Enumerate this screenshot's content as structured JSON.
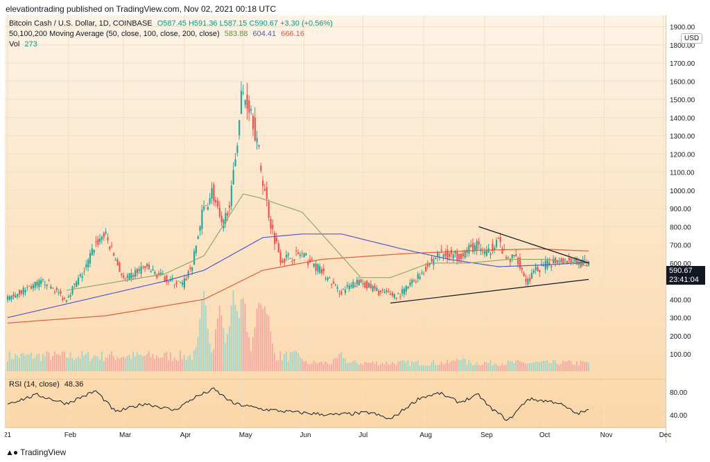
{
  "publisher": "elevationtrading published on TradingView.com, Nov 02, 2021 00:18 UTC",
  "brand": "TradingView",
  "currency_label": "USD",
  "legend": {
    "title": "Bitcoin Cash / U.S. Dollar, 1D, COINBASE",
    "ohlc": "O587.45  H591.36  L587.15  C590.67  +3.30 (+0.56%)",
    "ma_label": "50,100,200 Moving Average (50, close, 100, close, 200, close)",
    "ma50": "583.88",
    "ma100": "604.41",
    "ma200": "666.16",
    "vol_label": "Vol",
    "vol_value": "273",
    "rsi_label": "RSI (14, close)",
    "rsi_value": "48.36"
  },
  "last_price": "590.67",
  "countdown": "23:41:04",
  "colors": {
    "up": "#26a69a",
    "down": "#ef5350",
    "ma50": "#8fa86b",
    "ma100": "#4a5bd1",
    "ma200": "#e05a3a",
    "trend": "#131722",
    "bg_top": "#fdf3e6",
    "bg_bottom": "#fbd7a8"
  },
  "chart_data": {
    "type": "candlestick",
    "x_ticks": [
      "21",
      "Feb",
      "Mar",
      "Apr",
      "May",
      "Jun",
      "Jul",
      "Aug",
      "Sep",
      "Oct",
      "Nov",
      "Dec"
    ],
    "y_ticks": [
      "100.00",
      "200.00",
      "300.00",
      "400.00",
      "500.00",
      "600.00",
      "700.00",
      "800.00",
      "900.00",
      "1000.00",
      "1100.00",
      "1200.00",
      "1300.00",
      "1400.00",
      "1500.00",
      "1600.00",
      "1700.00",
      "1800.00",
      "1900.00"
    ],
    "rsi_ticks": [
      "80.00",
      "40.00"
    ],
    "price_anchors": [
      [
        0,
        400
      ],
      [
        10,
        460
      ],
      [
        20,
        500
      ],
      [
        30,
        400
      ],
      [
        40,
        560
      ],
      [
        45,
        700
      ],
      [
        50,
        760
      ],
      [
        55,
        640
      ],
      [
        60,
        500
      ],
      [
        70,
        580
      ],
      [
        80,
        520
      ],
      [
        90,
        480
      ],
      [
        95,
        600
      ],
      [
        100,
        880
      ],
      [
        105,
        1000
      ],
      [
        110,
        780
      ],
      [
        115,
        1000
      ],
      [
        120,
        1540
      ],
      [
        125,
        1450
      ],
      [
        130,
        1100
      ],
      [
        135,
        800
      ],
      [
        140,
        620
      ],
      [
        150,
        650
      ],
      [
        160,
        560
      ],
      [
        170,
        440
      ],
      [
        180,
        500
      ],
      [
        190,
        440
      ],
      [
        200,
        420
      ],
      [
        210,
        530
      ],
      [
        220,
        650
      ],
      [
        230,
        640
      ],
      [
        240,
        700
      ],
      [
        245,
        640
      ],
      [
        250,
        740
      ],
      [
        255,
        610
      ],
      [
        260,
        640
      ],
      [
        265,
        500
      ],
      [
        270,
        560
      ],
      [
        280,
        620
      ],
      [
        290,
        610
      ],
      [
        296,
        590
      ]
    ],
    "ma50": [
      [
        30,
        450
      ],
      [
        80,
        540
      ],
      [
        100,
        640
      ],
      [
        120,
        980
      ],
      [
        128,
        960
      ],
      [
        150,
        880
      ],
      [
        170,
        640
      ],
      [
        180,
        520
      ],
      [
        195,
        520
      ],
      [
        215,
        600
      ],
      [
        235,
        600
      ],
      [
        255,
        620
      ],
      [
        275,
        620
      ],
      [
        296,
        584
      ]
    ],
    "ma100": [
      [
        0,
        300
      ],
      [
        40,
        400
      ],
      [
        80,
        500
      ],
      [
        100,
        560
      ],
      [
        130,
        740
      ],
      [
        150,
        760
      ],
      [
        170,
        760
      ],
      [
        200,
        680
      ],
      [
        225,
        620
      ],
      [
        250,
        580
      ],
      [
        275,
        590
      ],
      [
        296,
        604
      ]
    ],
    "ma200": [
      [
        0,
        270
      ],
      [
        50,
        310
      ],
      [
        100,
        400
      ],
      [
        130,
        560
      ],
      [
        160,
        620
      ],
      [
        200,
        650
      ],
      [
        240,
        670
      ],
      [
        270,
        678
      ],
      [
        296,
        666
      ]
    ],
    "triangle": {
      "upper": [
        [
          240,
          800
        ],
        [
          296,
          600
        ]
      ],
      "lower": [
        [
          195,
          380
        ],
        [
          296,
          510
        ]
      ]
    },
    "volume_peaks": [
      [
        100,
        390
      ],
      [
        108,
        300
      ],
      [
        115,
        380
      ],
      [
        120,
        350
      ],
      [
        128,
        330
      ],
      [
        132,
        270
      ],
      [
        170,
        90
      ],
      [
        230,
        60
      ]
    ],
    "rsi_anchors": [
      [
        0,
        60
      ],
      [
        15,
        75
      ],
      [
        30,
        60
      ],
      [
        45,
        82
      ],
      [
        55,
        45
      ],
      [
        70,
        60
      ],
      [
        85,
        48
      ],
      [
        95,
        70
      ],
      [
        105,
        85
      ],
      [
        115,
        60
      ],
      [
        130,
        50
      ],
      [
        145,
        45
      ],
      [
        165,
        40
      ],
      [
        185,
        44
      ],
      [
        195,
        32
      ],
      [
        210,
        70
      ],
      [
        220,
        78
      ],
      [
        230,
        62
      ],
      [
        240,
        75
      ],
      [
        245,
        55
      ],
      [
        255,
        30
      ],
      [
        265,
        68
      ],
      [
        280,
        62
      ],
      [
        290,
        42
      ],
      [
        296,
        48
      ]
    ],
    "total_days": 345
  }
}
